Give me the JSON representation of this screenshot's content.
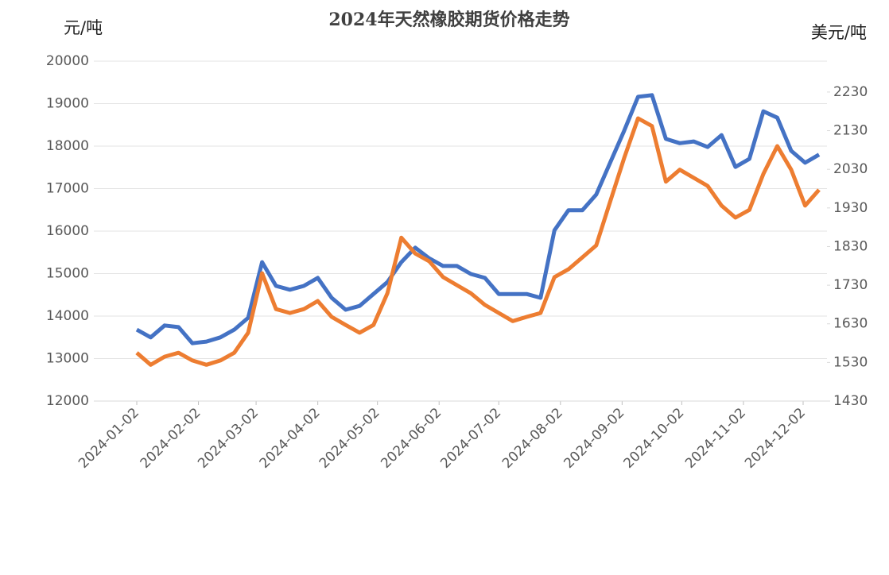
{
  "chart_data": {
    "type": "line",
    "title": "2024年天然橡胶期货价格走势",
    "y_label": "元/吨",
    "y2_label": "美元/吨",
    "x": [
      "2024-01-02",
      "2024-01-09",
      "2024-01-16",
      "2024-01-23",
      "2024-01-30",
      "2024-02-06",
      "2024-02-13",
      "2024-02-20",
      "2024-02-27",
      "2024-03-05",
      "2024-03-12",
      "2024-03-19",
      "2024-03-26",
      "2024-04-02",
      "2024-04-09",
      "2024-04-16",
      "2024-04-23",
      "2024-04-30",
      "2024-05-07",
      "2024-05-14",
      "2024-05-21",
      "2024-05-28",
      "2024-06-04",
      "2024-06-11",
      "2024-06-18",
      "2024-06-25",
      "2024-07-02",
      "2024-07-09",
      "2024-07-16",
      "2024-07-23",
      "2024-07-30",
      "2024-08-06",
      "2024-08-13",
      "2024-08-20",
      "2024-08-27",
      "2024-09-03",
      "2024-09-10",
      "2024-09-17",
      "2024-09-24",
      "2024-10-01",
      "2024-10-08",
      "2024-10-15",
      "2024-10-22",
      "2024-10-29",
      "2024-11-05",
      "2024-11-12",
      "2024-11-19",
      "2024-11-26",
      "2024-12-03",
      "2024-12-10"
    ],
    "xticks": [
      "2024-01-02",
      "2024-02-02",
      "2024-03-02",
      "2024-04-02",
      "2024-05-02",
      "2024-06-02",
      "2024-07-02",
      "2024-08-02",
      "2024-09-02",
      "2024-10-02",
      "2024-11-02",
      "2024-12-02"
    ],
    "series": [
      {
        "color": "#4472c4",
        "axis": "y",
        "values": [
          13680,
          13500,
          13780,
          13740,
          13360,
          13400,
          13500,
          13680,
          13960,
          15270,
          14710,
          14620,
          14710,
          14900,
          14430,
          14150,
          14240,
          14520,
          14800,
          15270,
          15610,
          15360,
          15180,
          15180,
          14990,
          14900,
          14520,
          14520,
          14520,
          14430,
          16020,
          16490,
          16490,
          16860,
          17610,
          18360,
          19160,
          19200,
          18170,
          18070,
          18110,
          17980,
          18260,
          17510,
          17700,
          18820,
          18670,
          17890,
          17610,
          17800
        ]
      },
      {
        "color": "#ed7d31",
        "axis": "y2",
        "values": [
          1555,
          1524,
          1545,
          1555,
          1535,
          1524,
          1535,
          1555,
          1607,
          1761,
          1668,
          1658,
          1668,
          1689,
          1648,
          1627,
          1607,
          1627,
          1709,
          1853,
          1812,
          1792,
          1751,
          1730,
          1709,
          1679,
          1658,
          1637,
          1648,
          1658,
          1751,
          1771,
          1802,
          1833,
          1946,
          2059,
          2162,
          2142,
          1998,
          2029,
          2008,
          1987,
          1936,
          1905,
          1925,
          2018,
          2090,
          2029,
          1936,
          1977
        ]
      }
    ],
    "ylim": [
      12000,
      20000
    ],
    "yticks": [
      12000,
      13000,
      14000,
      15000,
      16000,
      17000,
      18000,
      19000,
      20000
    ],
    "y2lim": [
      1430,
      2310
    ],
    "y2ticks": [
      1430,
      1530,
      1630,
      1730,
      1830,
      1930,
      2030,
      2130,
      2230
    ],
    "grid": true
  }
}
